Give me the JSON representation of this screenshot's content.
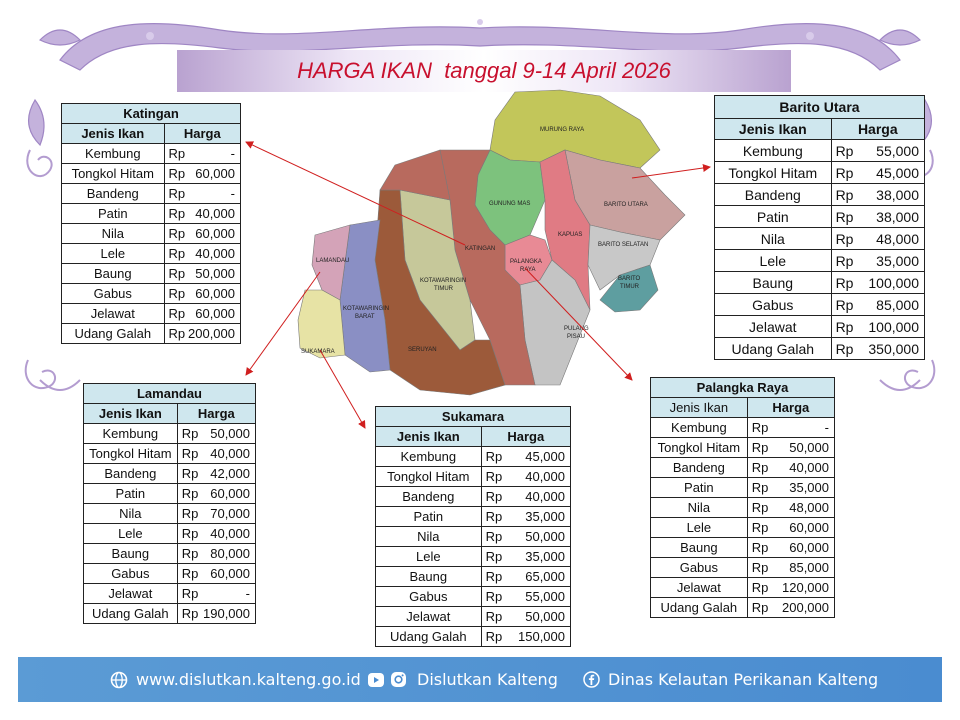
{
  "title": "HARGA IKAN  tanggal 9-14 April 2026",
  "headers": {
    "fish": "Jenis Ikan",
    "price": "Harga"
  },
  "currency": "Rp",
  "tables": {
    "katingan": {
      "region": "Katingan",
      "rows": [
        {
          "fish": "Kembung",
          "price": "-"
        },
        {
          "fish": "Tongkol Hitam",
          "price": "60,000"
        },
        {
          "fish": "Bandeng",
          "price": "-"
        },
        {
          "fish": "Patin",
          "price": "40,000"
        },
        {
          "fish": "Nila",
          "price": "60,000"
        },
        {
          "fish": "Lele",
          "price": "40,000"
        },
        {
          "fish": "Baung",
          "price": "50,000"
        },
        {
          "fish": "Gabus",
          "price": "60,000"
        },
        {
          "fish": "Jelawat",
          "price": "60,000"
        },
        {
          "fish": "Udang Galah",
          "price": "200,000"
        }
      ]
    },
    "barito_utara": {
      "region": "Barito Utara",
      "rows": [
        {
          "fish": "Kembung",
          "price": "55,000"
        },
        {
          "fish": "Tongkol Hitam",
          "price": "45,000"
        },
        {
          "fish": "Bandeng",
          "price": "38,000"
        },
        {
          "fish": "Patin",
          "price": "38,000"
        },
        {
          "fish": "Nila",
          "price": "48,000"
        },
        {
          "fish": "Lele",
          "price": "35,000"
        },
        {
          "fish": "Baung",
          "price": "100,000"
        },
        {
          "fish": "Gabus",
          "price": "85,000"
        },
        {
          "fish": "Jelawat",
          "price": "100,000"
        },
        {
          "fish": "Udang Galah",
          "price": "350,000"
        }
      ]
    },
    "lamandau": {
      "region": "Lamandau",
      "rows": [
        {
          "fish": "Kembung",
          "price": "50,000"
        },
        {
          "fish": "Tongkol Hitam",
          "price": "40,000"
        },
        {
          "fish": "Bandeng",
          "price": "42,000"
        },
        {
          "fish": "Patin",
          "price": "60,000"
        },
        {
          "fish": "Nila",
          "price": "70,000"
        },
        {
          "fish": "Lele",
          "price": "40,000"
        },
        {
          "fish": "Baung",
          "price": "80,000"
        },
        {
          "fish": "Gabus",
          "price": "60,000"
        },
        {
          "fish": "Jelawat",
          "price": "-"
        },
        {
          "fish": "Udang Galah",
          "price": "190,000"
        }
      ]
    },
    "sukamara": {
      "region": "Sukamara",
      "rows": [
        {
          "fish": "Kembung",
          "price": "45,000"
        },
        {
          "fish": "Tongkol Hitam",
          "price": "40,000"
        },
        {
          "fish": "Bandeng",
          "price": "40,000"
        },
        {
          "fish": "Patin",
          "price": "35,000"
        },
        {
          "fish": "Nila",
          "price": "50,000"
        },
        {
          "fish": "Lele",
          "price": "35,000"
        },
        {
          "fish": "Baung",
          "price": "65,000"
        },
        {
          "fish": "Gabus",
          "price": "55,000"
        },
        {
          "fish": "Jelawat",
          "price": "50,000"
        },
        {
          "fish": "Udang Galah",
          "price": "150,000"
        }
      ]
    },
    "palangka_raya": {
      "region": "Palangka Raya",
      "rows": [
        {
          "fish": "Kembung",
          "price": "-"
        },
        {
          "fish": "Tongkol Hitam",
          "price": "50,000"
        },
        {
          "fish": "Bandeng",
          "price": "40,000"
        },
        {
          "fish": "Patin",
          "price": "35,000"
        },
        {
          "fish": "Nila",
          "price": "48,000"
        },
        {
          "fish": "Lele",
          "price": "60,000"
        },
        {
          "fish": "Baung",
          "price": "60,000"
        },
        {
          "fish": "Gabus",
          "price": "85,000"
        },
        {
          "fish": "Jelawat",
          "price": "120,000"
        },
        {
          "fish": "Udang Galah",
          "price": "200,000"
        }
      ]
    }
  },
  "map_labels": {
    "murung_raya": "MURUNG RAYA",
    "gunung_mas": "GUNUNG MAS",
    "barito_utara": "BARITO UTARA",
    "katingan": "KATINGAN",
    "kapuas": "KAPUAS",
    "barito_selatan": "BARITO SELATAN",
    "barito_timur_1": "BARITO",
    "barito_timur_2": "TIMUR",
    "palangka_raya_1": "PALANGKA",
    "palangka_raya_2": "RAYA",
    "lamandau": "LAMANDAU",
    "kotawaringin_timur_1": "KOTAWARINGIN",
    "kotawaringin_timur_2": "TIMUR",
    "kotawaringin_barat_1": "KOTAWARINGIN",
    "kotawaringin_barat_2": "BARAT",
    "pulang_pisau_1": "PULANG",
    "pulang_pisau_2": "PISAU",
    "seruyan": "SERUYAN",
    "sukamara": "SUKAMARA"
  },
  "footer": {
    "website": "www.dislutkan.kalteng.go.id",
    "social": "Dislutkan Kalteng",
    "facebook": "Dinas Kelautan Perikanan Kalteng"
  },
  "colors": {
    "title": "#c8102e",
    "table_header": "#cfe7ee",
    "footer": "#5b9bd5",
    "ornament": "#b39cd0",
    "arrow": "#d01f1f"
  },
  "icons": {
    "globe": "globe-icon",
    "youtube": "youtube-icon",
    "instagram": "instagram-icon",
    "facebook": "facebook-icon"
  }
}
